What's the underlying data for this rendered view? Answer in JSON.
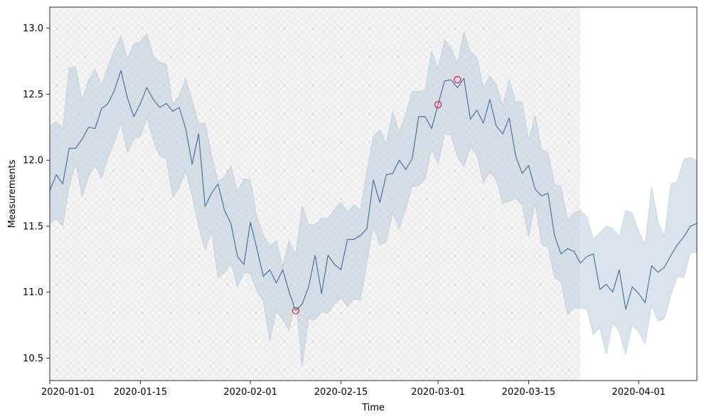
{
  "chart_data": {
    "type": "line",
    "title": "",
    "xlabel": "Time",
    "ylabel": "Measurements",
    "x_start": "2020-01-01",
    "x_end": "2020-04-10",
    "ylim": [
      10.33,
      13.16
    ],
    "grid": false,
    "legend": "none",
    "x_ticks": [
      {
        "date": "2020-01-01",
        "label": "2020-01-01"
      },
      {
        "date": "2020-01-15",
        "label": "2020-01-15"
      },
      {
        "date": "2020-02-01",
        "label": "2020-02-01"
      },
      {
        "date": "2020-02-15",
        "label": "2020-02-15"
      },
      {
        "date": "2020-03-01",
        "label": "2020-03-01"
      },
      {
        "date": "2020-03-15",
        "label": "2020-03-15"
      },
      {
        "date": "2020-04-01",
        "label": "2020-04-01"
      }
    ],
    "y_ticks": [
      {
        "value": 10.5,
        "label": "10.5"
      },
      {
        "value": 11.0,
        "label": "11.0"
      },
      {
        "value": 11.5,
        "label": "11.5"
      },
      {
        "value": 12.0,
        "label": "12.0"
      },
      {
        "value": 12.5,
        "label": "12.5"
      },
      {
        "value": 13.0,
        "label": "13.0"
      }
    ],
    "shaded_region": {
      "start": "2020-01-01",
      "end": "2020-03-23",
      "fill": "#f4f4f4",
      "hatch": "#e6e6e6"
    },
    "series": [
      {
        "name": "Measurements",
        "color": "#4c72a4",
        "band_color": "#b8c8da",
        "values": [
          11.77,
          11.89,
          11.82,
          12.09,
          12.09,
          12.16,
          12.25,
          12.24,
          12.39,
          12.43,
          12.53,
          12.68,
          12.47,
          12.33,
          12.43,
          12.55,
          12.46,
          12.4,
          12.43,
          12.37,
          12.4,
          12.24,
          11.97,
          12.2,
          11.65,
          11.75,
          11.82,
          11.62,
          11.52,
          11.27,
          11.21,
          11.53,
          11.33,
          11.12,
          11.17,
          11.07,
          11.17,
          11.0,
          10.86,
          10.91,
          11.04,
          11.28,
          10.99,
          11.28,
          11.21,
          11.17,
          11.4,
          11.4,
          11.43,
          11.48,
          11.85,
          11.68,
          11.89,
          11.9,
          12.0,
          11.93,
          12.01,
          12.33,
          12.33,
          12.24,
          12.42,
          12.6,
          12.61,
          12.55,
          12.62,
          12.31,
          12.38,
          12.28,
          12.46,
          12.26,
          12.2,
          12.32,
          12.03,
          11.9,
          11.96,
          11.78,
          11.73,
          11.75,
          11.43,
          11.29,
          11.33,
          11.31,
          11.22,
          11.27,
          11.29,
          11.02,
          11.06,
          11.0,
          11.17,
          10.87,
          11.04,
          10.99,
          10.92,
          11.2,
          11.15,
          11.19,
          11.28,
          11.36,
          11.42,
          11.5,
          11.52,
          11.65
        ],
        "band_lower": [
          11.52,
          11.56,
          11.5,
          11.8,
          11.98,
          11.72,
          11.88,
          11.96,
          11.86,
          12.02,
          12.14,
          12.28,
          12.06,
          12.16,
          12.18,
          12.32,
          12.15,
          12.03,
          12.01,
          11.72,
          11.79,
          11.92,
          11.73,
          11.5,
          11.32,
          11.46,
          11.11,
          11.15,
          11.22,
          11.04,
          11.15,
          11.14,
          11.01,
          10.93,
          10.63,
          10.86,
          10.79,
          10.71,
          10.95,
          10.44,
          10.8,
          10.79,
          10.85,
          10.84,
          10.91,
          10.96,
          10.89,
          10.95,
          10.94,
          11.22,
          11.5,
          11.36,
          11.38,
          11.6,
          11.48,
          11.63,
          11.8,
          11.81,
          11.86,
          12.09,
          11.97,
          12.2,
          12.19,
          12.03,
          11.95,
          12.1,
          12.04,
          11.83,
          11.91,
          11.85,
          11.67,
          11.69,
          11.71,
          11.66,
          11.42,
          11.68,
          11.36,
          11.34,
          11.11,
          11.08,
          10.83,
          10.88,
          10.88,
          10.87,
          10.68,
          10.73,
          10.53,
          10.77,
          10.7,
          10.53,
          10.75,
          10.7,
          10.61,
          10.9,
          10.78,
          10.8,
          10.98,
          11.12,
          11.11,
          11.3,
          11.3,
          11.26
        ],
        "band_upper": [
          12.26,
          12.29,
          12.24,
          12.7,
          12.71,
          12.45,
          12.61,
          12.69,
          12.57,
          12.71,
          12.84,
          12.94,
          12.77,
          12.88,
          12.9,
          12.96,
          12.79,
          12.74,
          12.73,
          12.42,
          12.49,
          12.62,
          12.45,
          12.28,
          12.28,
          12.04,
          11.84,
          11.87,
          11.96,
          11.76,
          11.86,
          11.85,
          11.57,
          11.43,
          11.35,
          11.39,
          11.2,
          11.39,
          11.28,
          11.66,
          11.51,
          11.51,
          11.56,
          11.56,
          11.63,
          11.68,
          11.61,
          11.66,
          11.62,
          11.92,
          12.18,
          12.23,
          12.12,
          12.37,
          12.21,
          12.35,
          12.52,
          12.52,
          12.53,
          12.83,
          12.69,
          12.91,
          12.85,
          12.73,
          12.97,
          12.82,
          12.78,
          12.55,
          12.64,
          12.57,
          12.41,
          12.61,
          12.44,
          12.44,
          12.15,
          12.34,
          12.08,
          12.06,
          11.82,
          11.8,
          11.55,
          11.6,
          11.62,
          11.57,
          11.4,
          11.45,
          11.5,
          11.48,
          11.42,
          11.62,
          11.6,
          11.46,
          11.36,
          11.8,
          11.53,
          11.42,
          11.82,
          11.84,
          12.01,
          12.02,
          12.0,
          12.29
        ]
      }
    ],
    "highlighted_points": [
      {
        "date": "2020-02-08",
        "value": 10.86,
        "color": "#e0202a"
      },
      {
        "date": "2020-03-01",
        "value": 12.42,
        "color": "#e0202a"
      },
      {
        "date": "2020-03-04",
        "value": 12.61,
        "color": "#e0202a"
      }
    ]
  }
}
